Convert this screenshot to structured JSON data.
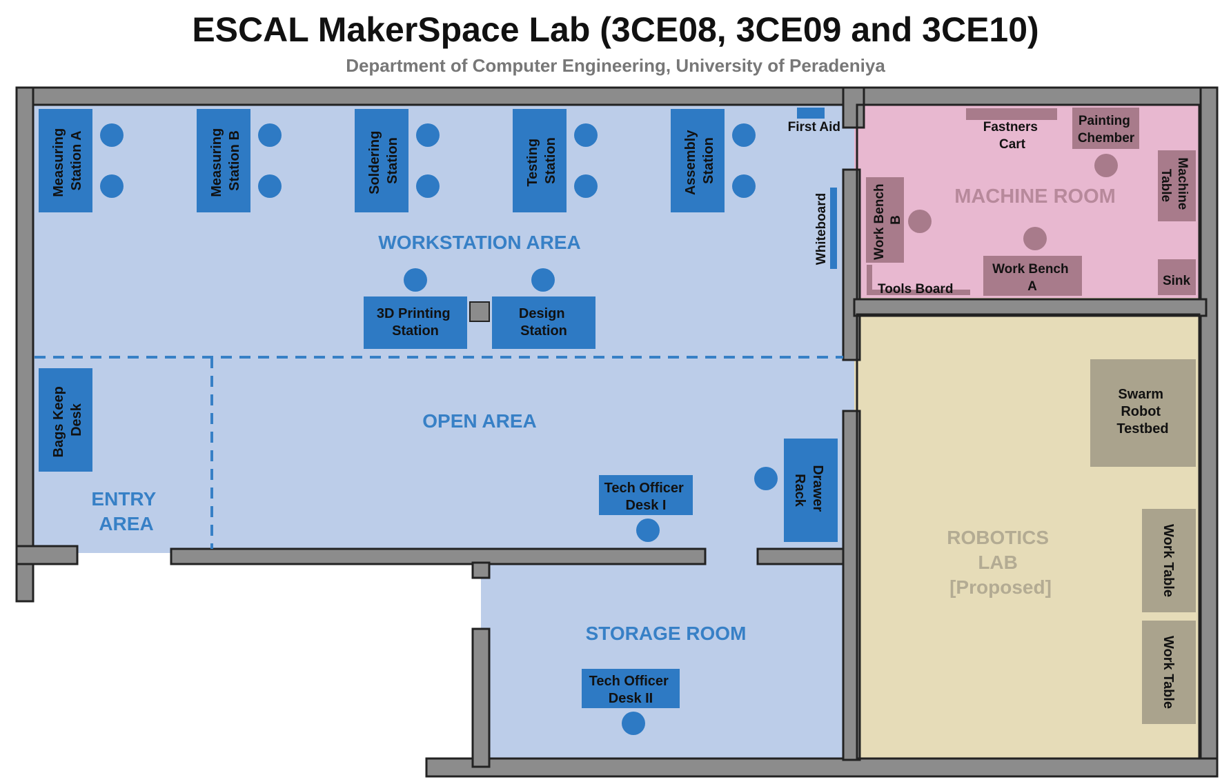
{
  "title": "ESCAL MakerSpace Lab (3CE08, 3CE09 and 3CE10)",
  "subtitle": "Department of Computer Engineering, University of Peradeniya",
  "colors": {
    "wall": "#8c8c8c",
    "wall_stroke": "#222222",
    "main_floor": "#bccde9",
    "machine_floor": "#e8b8d0",
    "robotics_floor": "#e6dcb8",
    "station_blue": "#2e7ac4",
    "machine_furniture": "#a87b8b",
    "robotics_furniture": "#aaa38d",
    "area_blue": "#3780c6",
    "machine_label": "#b7899b",
    "robotics_label": "#b3ab93"
  },
  "areas": {
    "workstation": "WORKSTATION AREA",
    "open": "OPEN AREA",
    "entry_line1": "ENTRY",
    "entry_line2": "AREA",
    "storage": "STORAGE ROOM",
    "machine": "MACHINE ROOM",
    "robotics_line1": "ROBOTICS",
    "robotics_line2": "LAB",
    "robotics_line3": "[Proposed]"
  },
  "stations": {
    "measuring_a": [
      "Measuring",
      "Station A"
    ],
    "measuring_b": [
      "Measuring",
      "Station B"
    ],
    "soldering": [
      "Soldering",
      "Station"
    ],
    "testing": [
      "Testing",
      "Station"
    ],
    "assembly": [
      "Assembly",
      "Station"
    ],
    "printing": [
      "3D Printing",
      "Station"
    ],
    "design": [
      "Design",
      "Station"
    ],
    "bags": [
      "Bags Keep",
      "Desk"
    ],
    "tech1": [
      "Tech Officer",
      "Desk I"
    ],
    "tech2": [
      "Tech Officer",
      "Desk II"
    ],
    "drawer": [
      "Drawer",
      "Rack"
    ]
  },
  "fixtures": {
    "first_aid": "First Aid",
    "whiteboard": "Whiteboard"
  },
  "machine_room": {
    "fastners": [
      "Fastners",
      "Cart"
    ],
    "painting": [
      "Painting",
      "Chember"
    ],
    "machine_table": [
      "Machine",
      "Table"
    ],
    "bench_b": [
      "Work Bench",
      "B"
    ],
    "bench_a": [
      "Work Bench",
      "A"
    ],
    "tools_board": "Tools Board",
    "sink": "Sink"
  },
  "robotics_lab": {
    "swarm": [
      "Swarm",
      "Robot",
      "Testbed"
    ],
    "work_table_1": "Work Table",
    "work_table_2": "Work Table"
  }
}
